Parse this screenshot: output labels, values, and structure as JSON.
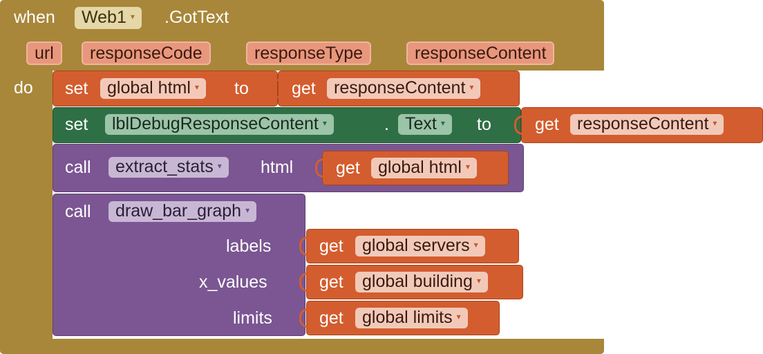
{
  "event": {
    "when": "when",
    "component": "Web1",
    "event_name": ".GotText",
    "params": [
      "url",
      "responseCode",
      "responseType",
      "responseContent"
    ],
    "do": "do"
  },
  "stmt1": {
    "set": "set",
    "var": "global html",
    "to": "to",
    "get": "get",
    "value": "responseContent"
  },
  "stmt2": {
    "set": "set",
    "component": "lblDebugResponseContent",
    "dot": ".",
    "prop": "Text",
    "to": "to",
    "get": "get",
    "value": "responseContent"
  },
  "stmt3": {
    "call": "call",
    "proc": "extract_stats",
    "arg_label": "html",
    "get": "get",
    "value": "global html"
  },
  "stmt4": {
    "call": "call",
    "proc": "draw_bar_graph",
    "args": [
      {
        "label": "labels",
        "get": "get",
        "value": "global servers"
      },
      {
        "label": "x_values",
        "get": "get",
        "value": "global building"
      },
      {
        "label": "limits",
        "get": "get",
        "value": "global limits"
      }
    ]
  },
  "colors": {
    "event": "#a8873a",
    "variable": "#d35d2e",
    "component": "#2f6f45",
    "procedure": "#7b5692"
  }
}
